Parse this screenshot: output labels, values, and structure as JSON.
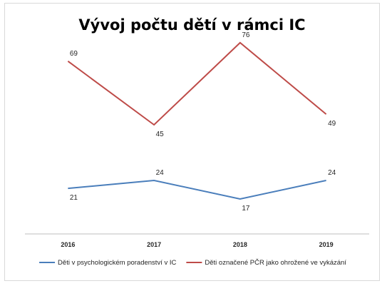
{
  "chart_data": {
    "type": "line",
    "title": "Vývoj počtu dětí v rámci IC",
    "categories": [
      "2016",
      "2017",
      "2018",
      "2019"
    ],
    "series": [
      {
        "name": "Děti v psychologickém poradenství v IC",
        "color": "#4a7ebb",
        "values": [
          21,
          24,
          17,
          24
        ],
        "label_side": [
          "below",
          "above",
          "below",
          "above"
        ]
      },
      {
        "name": "Děti označené PČR jako ohrožené ve vykázání",
        "color": "#be4b48",
        "values": [
          69,
          45,
          76,
          49
        ],
        "label_side": [
          "above",
          "below",
          "above",
          "below"
        ]
      }
    ],
    "xlabel": "",
    "ylabel": "",
    "ylim": [
      10,
      80
    ],
    "grid": false,
    "y_axis_visible": false,
    "legend_position": "bottom"
  }
}
